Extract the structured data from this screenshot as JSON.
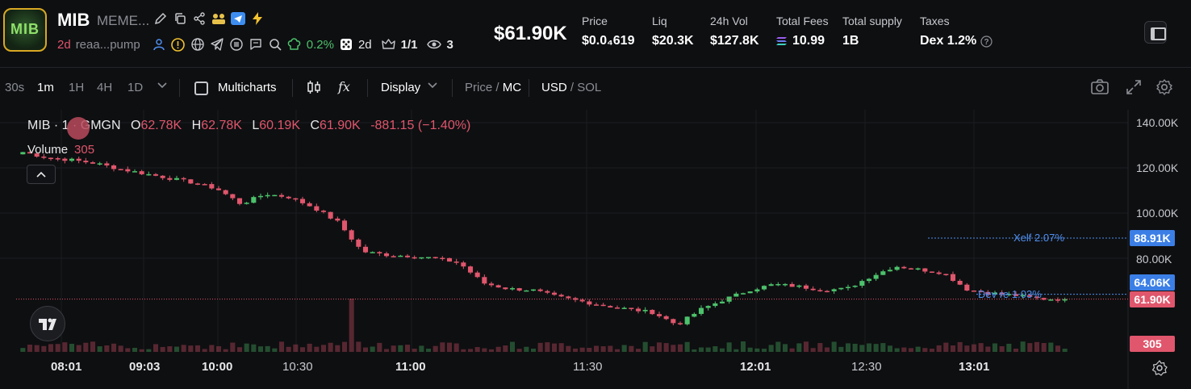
{
  "token": {
    "symbol": "MIB",
    "name": "MEME...",
    "avatar_text": "MIB",
    "age": "2d",
    "creator": "reaa...pump",
    "change_pct": "0.2%",
    "dev_age": "2d",
    "holders_ratio": "1/1",
    "watchers": "3",
    "market_cap": "$61.90K"
  },
  "stats": [
    {
      "label": "Price",
      "value": "$0.0₄619"
    },
    {
      "label": "Liq",
      "value": "$20.3K"
    },
    {
      "label": "24h Vol",
      "value": "$127.8K"
    },
    {
      "label": "Total Fees",
      "value": "10.99"
    },
    {
      "label": "Total supply",
      "value": "1B"
    },
    {
      "label": "Taxes",
      "value": "Dex 1.2%"
    }
  ],
  "toolbar": {
    "intervals": [
      "30s",
      "1m",
      "1H",
      "4H",
      "1D"
    ],
    "active_interval": "1m",
    "multicharts": "Multicharts",
    "display": "Display",
    "price_label": "Price",
    "mc_label": "MC",
    "usd_label": "USD",
    "sol_label": "SOL"
  },
  "chart": {
    "legend_symbol": "MIB · 1 · GMGN",
    "o_label": "O",
    "o_val": "62.78K",
    "h_label": "H",
    "h_val": "62.78K",
    "l_label": "L",
    "l_val": "60.19K",
    "c_label": "C",
    "c_val": "61.90K",
    "change": "-881.15 (−1.40%)",
    "volume_label": "Volume",
    "volume_val": "305",
    "y_axis": [
      "140.00K",
      "120.00K",
      "100.00K",
      "80.00K"
    ],
    "x_axis": [
      "08:01",
      "09:03",
      "10:00",
      "10:30",
      "11:00",
      "11:30",
      "12:01",
      "12:30",
      "13:01"
    ],
    "price_tags": {
      "xelf": "88.91K",
      "dev": "64.06K",
      "last": "61.90K",
      "vol": "305"
    },
    "line_labels": {
      "xelf": "Xelf 2.07%",
      "dev": "Dev re 1.03%"
    },
    "colors": {
      "up": "#4cc26b",
      "down": "#e0566c",
      "blue": "#4f8ff0"
    }
  },
  "chart_data": {
    "type": "candlestick",
    "x_ticks": [
      "08:01",
      "09:03",
      "10:00",
      "10:30",
      "11:00",
      "11:30",
      "12:01",
      "12:30",
      "13:01"
    ],
    "ylim": [
      55000,
      145000
    ],
    "close_path": [
      127000,
      124500,
      123500,
      122000,
      119500,
      117500,
      115500,
      113500,
      110800,
      104000,
      108500,
      107000,
      102500,
      96000,
      83000,
      81500,
      81000,
      80000,
      78000,
      69000,
      66500,
      66000,
      63000,
      61000,
      59000,
      57500,
      56000,
      50500,
      57500,
      62000,
      66000,
      68500,
      67500,
      66000,
      66500,
      72000,
      76500,
      75000,
      73500,
      66000,
      64500,
      63500,
      62000,
      61900
    ],
    "last_price": 61900,
    "xelf_line": 88910,
    "dev_line": 64060
  }
}
